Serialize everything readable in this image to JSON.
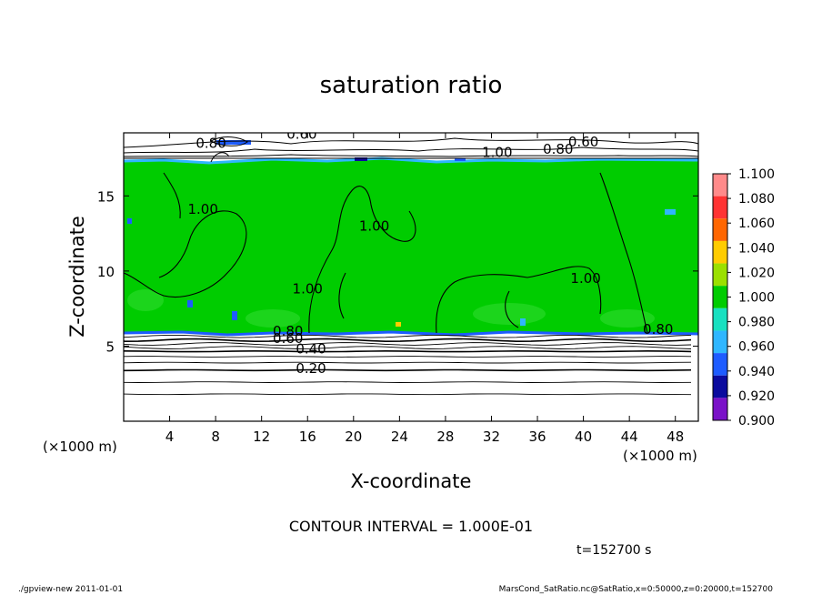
{
  "chart_data": {
    "type": "heatmap",
    "title": "saturation ratio",
    "xlabel": "X-coordinate",
    "ylabel": "Z-coordinate",
    "x_unit_left": "(×1000 m)",
    "x_unit_right": "(×1000 m)",
    "xlim": [
      0,
      50
    ],
    "ylim": [
      0,
      19.2
    ],
    "x_ticks": [
      4,
      8,
      12,
      16,
      20,
      24,
      28,
      32,
      36,
      40,
      44,
      48
    ],
    "y_ticks": [
      5,
      10,
      15
    ],
    "contour_interval_text": "CONTOUR INTERVAL = 1.000E-01",
    "time_text": "t=152700 s",
    "footer_left": "./gpview-new  2011-01-01",
    "footer_right": "MarsCond_SatRatio.nc@SatRatio,x=0:50000,z=0:20000,t=152700",
    "colorbar": {
      "levels": [
        "0.900",
        "0.920",
        "0.940",
        "0.960",
        "0.980",
        "1.000",
        "1.020",
        "1.040",
        "1.060",
        "1.080",
        "1.100"
      ],
      "colors": [
        "#7a12c8",
        "#0b0b9e",
        "#1e5cff",
        "#2fb6ff",
        "#18e0c0",
        "#00cc00",
        "#9be000",
        "#ffcc00",
        "#ff6600",
        "#ff3333",
        "#ff8a8a"
      ]
    },
    "contour_labels": [
      {
        "text": "0.60",
        "x": 15.5,
        "z": 18.8
      },
      {
        "text": "0.80",
        "x": 7.6,
        "z": 18.2
      },
      {
        "text": "1.00",
        "x": 32.5,
        "z": 17.6
      },
      {
        "text": "0.80",
        "x": 37.8,
        "z": 17.8
      },
      {
        "text": "0.60",
        "x": 40.0,
        "z": 18.3
      },
      {
        "text": "1.00",
        "x": 6.9,
        "z": 13.8
      },
      {
        "text": "1.00",
        "x": 21.8,
        "z": 12.7
      },
      {
        "text": "1.00",
        "x": 16.0,
        "z": 8.5
      },
      {
        "text": "1.00",
        "x": 40.2,
        "z": 9.2
      },
      {
        "text": "0.80",
        "x": 46.5,
        "z": 5.8
      },
      {
        "text": "0.80",
        "x": 14.3,
        "z": 5.7
      },
      {
        "text": "0.60",
        "x": 14.3,
        "z": 5.2
      },
      {
        "text": "0.40",
        "x": 16.3,
        "z": 4.5
      },
      {
        "text": "0.20",
        "x": 16.3,
        "z": 3.2
      }
    ],
    "green_region": {
      "z_bottom": 6.2,
      "z_top": 18.0
    },
    "low_contour_z": [
      1.8,
      2.6,
      3.4,
      3.9,
      4.3,
      4.65,
      4.9,
      5.15,
      5.4,
      5.65
    ]
  }
}
